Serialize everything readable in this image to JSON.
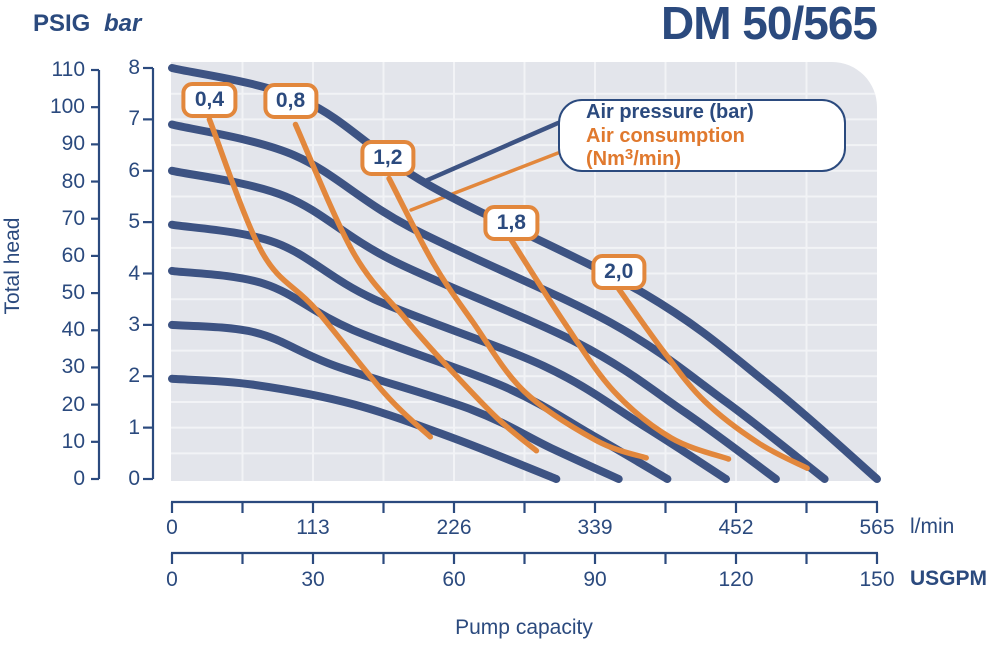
{
  "header": {
    "psig": "PSIG",
    "bar": "bar",
    "title": "DM 50/565"
  },
  "chart_data": {
    "type": "line",
    "title": "DM 50/565",
    "ylabel": "Total head",
    "xlabel": "Pump capacity",
    "y_axis_psig": {
      "unit": "PSIG",
      "range": [
        0,
        110
      ],
      "ticks": [
        110,
        100,
        90,
        80,
        70,
        60,
        50,
        40,
        30,
        20,
        10,
        0
      ]
    },
    "y_axis_bar": {
      "unit": "bar",
      "range": [
        0,
        8
      ],
      "ticks": [
        8,
        7,
        6,
        5,
        4,
        3,
        2,
        1,
        0
      ]
    },
    "x_axis_lmin": {
      "unit": "l/min",
      "range": [
        0,
        565
      ],
      "ticks": [
        0,
        113,
        226,
        339,
        452,
        565
      ],
      "minor_step": 56.5
    },
    "x_axis_usgpm": {
      "unit": "USGPM",
      "range": [
        0,
        150
      ],
      "ticks": [
        0,
        30,
        60,
        90,
        120,
        150
      ],
      "minor_step": 15
    },
    "legend": {
      "pressure": "Air pressure (bar)",
      "consumption_pre": "Air consumption (Nm",
      "consumption_sup": "3",
      "consumption_post": "/min)"
    },
    "grid": {
      "vertical_step_lmin": 56.5,
      "horizontal_step_bar": 0.5
    },
    "pressure_curves": [
      {
        "pressure_bar": 8,
        "points": [
          [
            0,
            8.0
          ],
          [
            106,
            7.36
          ],
          [
            206,
            5.72
          ],
          [
            379,
            3.6
          ],
          [
            480,
            1.8
          ],
          [
            565,
            0
          ]
        ]
      },
      {
        "pressure_bar": 7,
        "points": [
          [
            0,
            6.9
          ],
          [
            98,
            6.3
          ],
          [
            191,
            4.9
          ],
          [
            351,
            3.05
          ],
          [
            444,
            1.5
          ],
          [
            523,
            0
          ]
        ]
      },
      {
        "pressure_bar": 6,
        "points": [
          [
            0,
            6.0
          ],
          [
            91,
            5.5
          ],
          [
            177,
            4.25
          ],
          [
            325,
            2.65
          ],
          [
            411,
            1.3
          ],
          [
            484,
            0
          ]
        ]
      },
      {
        "pressure_bar": 5,
        "points": [
          [
            0,
            4.95
          ],
          [
            83,
            4.6
          ],
          [
            162,
            3.5
          ],
          [
            298,
            2.2
          ],
          [
            377,
            1.05
          ],
          [
            444,
            0
          ]
        ]
      },
      {
        "pressure_bar": 4,
        "points": [
          [
            0,
            4.05
          ],
          [
            74,
            3.8
          ],
          [
            145,
            2.9
          ],
          [
            266,
            1.8
          ],
          [
            337,
            0.85
          ],
          [
            397,
            0
          ]
        ]
      },
      {
        "pressure_bar": 3,
        "points": [
          [
            0,
            3.0
          ],
          [
            67,
            2.85
          ],
          [
            131,
            2.2
          ],
          [
            240,
            1.35
          ],
          [
            304,
            0.6
          ],
          [
            358,
            0
          ]
        ]
      },
      {
        "pressure_bar": 2,
        "points": [
          [
            0,
            1.95
          ],
          [
            64,
            1.84
          ],
          [
            146,
            1.45
          ],
          [
            226,
            0.79
          ],
          [
            308,
            0
          ]
        ]
      }
    ],
    "consumption_curves": [
      {
        "label": "0,4",
        "value_nm3_min": 0.4,
        "label_anchor": [
          30,
          7.38
        ],
        "points": [
          [
            30,
            7.0
          ],
          [
            72,
            4.42
          ],
          [
            115,
            3.31
          ],
          [
            171,
            1.65
          ],
          [
            207,
            0.82
          ]
        ]
      },
      {
        "label": "0,8",
        "value_nm3_min": 0.8,
        "label_anchor": [
          95,
          7.35
        ],
        "points": [
          [
            99,
            6.9
          ],
          [
            145,
            4.42
          ],
          [
            187,
            3.12
          ],
          [
            217,
            2.29
          ],
          [
            260,
            1.2
          ],
          [
            292,
            0.55
          ]
        ]
      },
      {
        "label": "1,2",
        "value_nm3_min": 1.2,
        "label_anchor": [
          173,
          6.24
        ],
        "points": [
          [
            174,
            5.85
          ],
          [
            209,
            4.22
          ],
          [
            241,
            3.06
          ],
          [
            282,
            1.71
          ],
          [
            340,
            0.75
          ],
          [
            380,
            0.41
          ]
        ]
      },
      {
        "label": "1,8",
        "value_nm3_min": 1.8,
        "label_anchor": [
          272,
          4.98
        ],
        "points": [
          [
            272,
            4.65
          ],
          [
            314,
            3.06
          ],
          [
            354,
            1.71
          ],
          [
            400,
            0.8
          ],
          [
            446,
            0.39
          ]
        ]
      },
      {
        "label": "2,0",
        "value_nm3_min": 2.0,
        "label_anchor": [
          358,
          4.02
        ],
        "points": [
          [
            358,
            3.7
          ],
          [
            394,
            2.48
          ],
          [
            427,
            1.51
          ],
          [
            470,
            0.7
          ],
          [
            509,
            0.21
          ]
        ]
      }
    ],
    "colors": {
      "curve_blue": "#3d5383",
      "curve_orange": "#e2873c",
      "text_blue": "#2b4a7e",
      "legend_orange": "#e0792e",
      "plot_bg": "#e3e5eb",
      "grid_line": "#f2f3f6"
    }
  }
}
